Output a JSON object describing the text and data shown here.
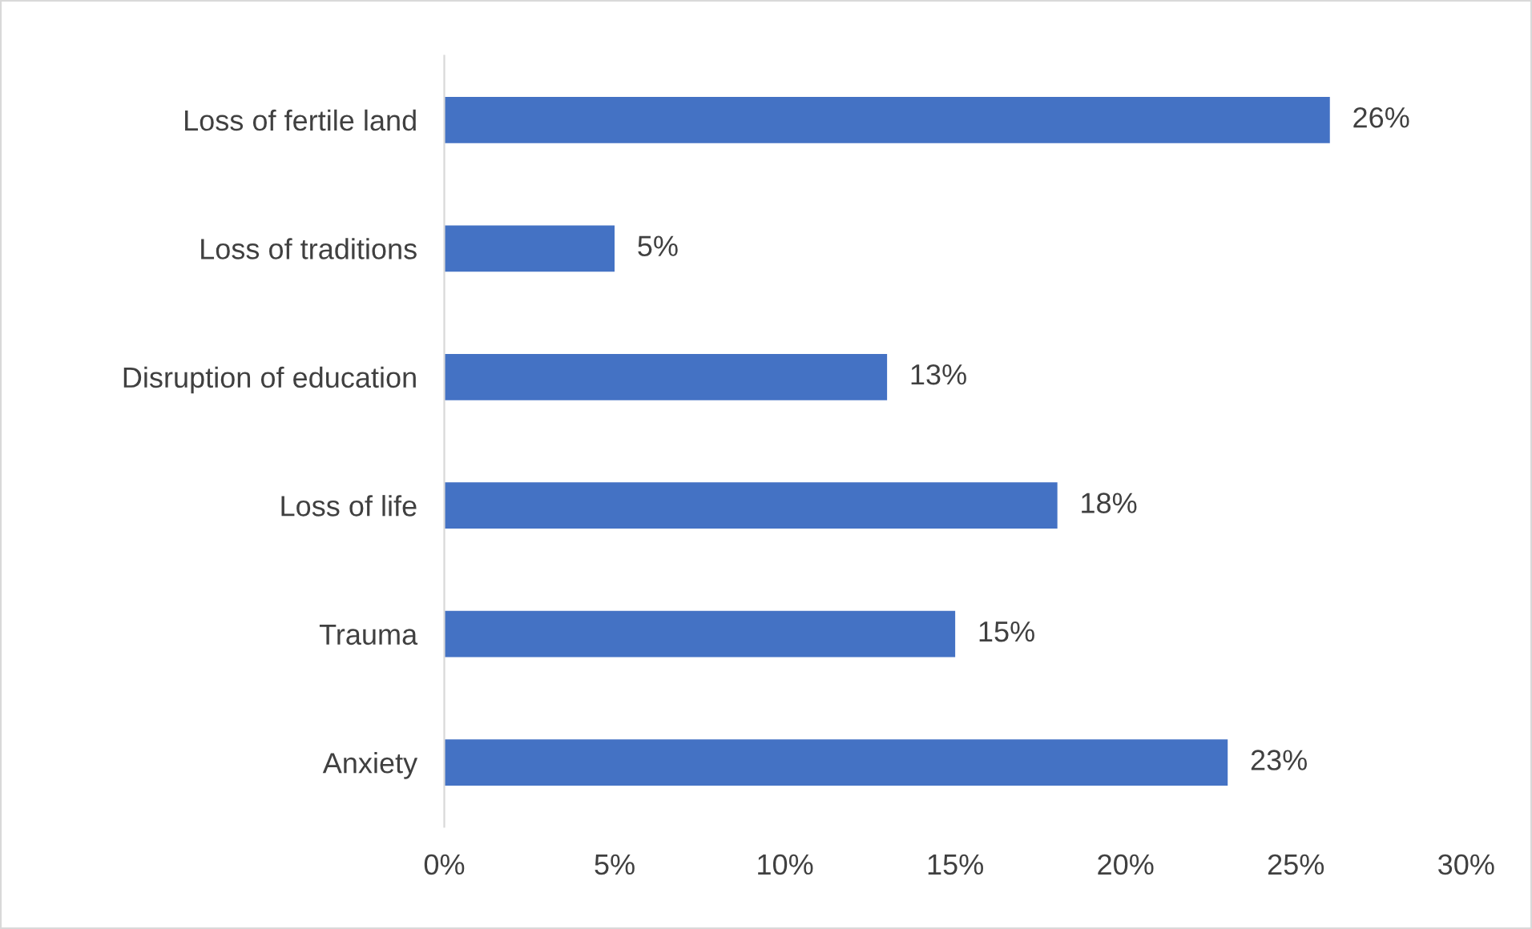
{
  "chart_data": {
    "type": "bar",
    "orientation": "horizontal",
    "categories": [
      "Loss of fertile land",
      "Loss of traditions",
      "Disruption of education",
      "Loss of life",
      "Trauma",
      "Anxiety"
    ],
    "values": [
      26,
      5,
      13,
      18,
      15,
      23
    ],
    "value_labels": [
      "26%",
      "5%",
      "13%",
      "18%",
      "15%",
      "23%"
    ],
    "color": "#4472c4",
    "xlim": [
      0,
      30
    ],
    "xticks": [
      {
        "value": 0,
        "label": "0%"
      },
      {
        "value": 5,
        "label": "5%"
      },
      {
        "value": 10,
        "label": "10%"
      },
      {
        "value": 15,
        "label": "15%"
      },
      {
        "value": 20,
        "label": "20%"
      },
      {
        "value": 25,
        "label": "25%"
      },
      {
        "value": 30,
        "label": "30%"
      }
    ],
    "grid": false,
    "legend": false
  }
}
